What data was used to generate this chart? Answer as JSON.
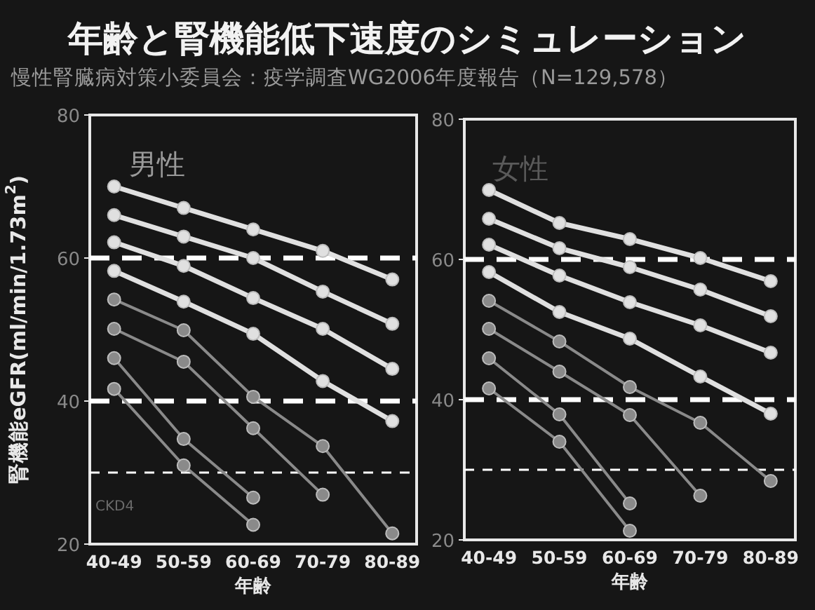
{
  "chart_data": [
    {
      "type": "line",
      "title": "年齢と腎機能低下速度のシミュレーション",
      "subtitle": "慢性腎臓病対策小委員会：疫学調査WG2006年度報告（N=129,578）",
      "annotations": [
        "男性",
        "CKD4"
      ],
      "xlabel": "年齢",
      "ylabel": "腎機能eGFR(ml/min/1.73m$^{2}$)",
      "categories": [
        "40-49",
        "50-59",
        "60-69",
        "70-79",
        "80-89"
      ],
      "ylim": [
        20,
        80
      ],
      "yticks": [
        20,
        40,
        60,
        80
      ],
      "marker": "circle",
      "line_style": "solid",
      "grid": false,
      "ref_lines": [
        {
          "axis": "y",
          "value": 60,
          "color": "#ffffff",
          "line_style": "dashed"
        },
        {
          "axis": "y",
          "value": 40,
          "color": "#ffffff",
          "line_style": "dashed"
        },
        {
          "axis": "y",
          "value": 30,
          "color": "#ffffff",
          "line_style": "dashed"
        }
      ],
      "series": [
        {
          "color": "#e0e0e0",
          "values": [
            70,
            67,
            64,
            61,
            57
          ]
        },
        {
          "color": "#e0e0e0",
          "values": [
            66,
            63,
            60,
            55.3,
            50.8
          ]
        },
        {
          "color": "#e0e0e0",
          "values": [
            62.2,
            58.9,
            54.4,
            50.1,
            44.5
          ]
        },
        {
          "color": "#e0e0e0",
          "values": [
            58.2,
            53.9,
            49.4,
            42.8,
            37.2
          ]
        },
        {
          "color": "#8a8a8a",
          "values": [
            54.2,
            49.9,
            40.6,
            33.7,
            21.5
          ]
        },
        {
          "color": "#8a8a8a",
          "values": [
            50.1,
            45.5,
            36.2,
            26.9,
            null
          ]
        },
        {
          "color": "#8a8a8a",
          "values": [
            46,
            34.7,
            26.5,
            null,
            null
          ]
        },
        {
          "color": "#8a8a8a",
          "values": [
            41.7,
            31,
            22.7,
            null,
            null
          ]
        }
      ]
    },
    {
      "type": "line",
      "annotations": [
        "女性"
      ],
      "xlabel": "年齢",
      "categories": [
        "40-49",
        "50-59",
        "60-69",
        "70-79",
        "80-89"
      ],
      "ylim": [
        20,
        80
      ],
      "yticks": [
        20,
        40,
        60,
        80
      ],
      "marker": "circle",
      "line_style": "solid",
      "grid": false,
      "ref_lines": [
        {
          "axis": "y",
          "value": 60,
          "color": "#ffffff",
          "line_style": "dashed"
        },
        {
          "axis": "y",
          "value": 40,
          "color": "#ffffff",
          "line_style": "dashed"
        },
        {
          "axis": "y",
          "value": 30,
          "color": "#ffffff",
          "line_style": "dashed"
        }
      ],
      "series": [
        {
          "color": "#e0e0e0",
          "values": [
            69.9,
            65.2,
            62.9,
            60.2,
            56.9
          ]
        },
        {
          "color": "#e0e0e0",
          "values": [
            65.8,
            61.6,
            58.9,
            55.7,
            51.9
          ]
        },
        {
          "color": "#e0e0e0",
          "values": [
            62.1,
            57.7,
            53.9,
            50.6,
            46.7
          ]
        },
        {
          "color": "#e0e0e0",
          "values": [
            58.2,
            52.5,
            48.7,
            43.3,
            38
          ]
        },
        {
          "color": "#8a8a8a",
          "values": [
            54.1,
            48.3,
            41.8,
            36.7,
            28.4
          ]
        },
        {
          "color": "#8a8a8a",
          "values": [
            50.1,
            44,
            37.8,
            26.3,
            null
          ]
        },
        {
          "color": "#8a8a8a",
          "values": [
            45.9,
            37.9,
            25.2,
            null,
            null
          ]
        },
        {
          "color": "#8a8a8a",
          "values": [
            41.6,
            34,
            21.3,
            null,
            null
          ]
        }
      ]
    }
  ]
}
